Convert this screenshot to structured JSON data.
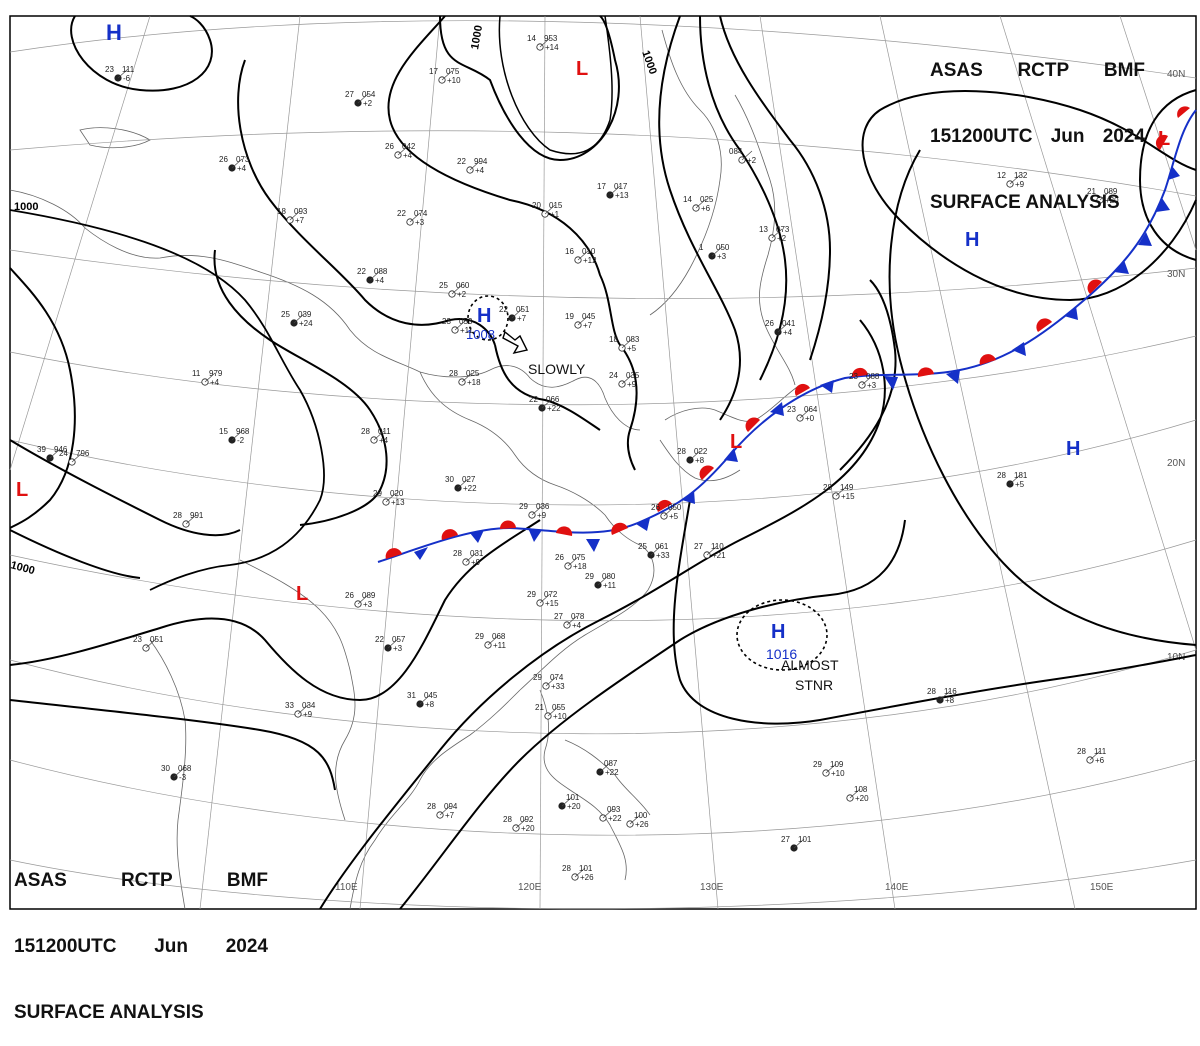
{
  "header": {
    "line1": [
      "ASAS",
      "RCTP",
      "BMF"
    ],
    "line2": [
      "151200UTC",
      "Jun",
      "2024"
    ],
    "line3": "SURFACE ANALYSIS"
  },
  "lon_labels": [
    "110E",
    "120E",
    "130E",
    "140E",
    "150E"
  ],
  "lat_labels": [
    "40N",
    "30N",
    "20N",
    "10N"
  ],
  "isobar_labels": [
    "1000",
    "1000",
    "1000",
    "1000"
  ],
  "pressure_systems": [
    {
      "type": "H",
      "color": "#1530c8",
      "value": ""
    },
    {
      "type": "L",
      "color": "#e01010",
      "value": ""
    },
    {
      "type": "H",
      "color": "#1530c8",
      "value": "1008"
    },
    {
      "type": "H",
      "color": "#1530c8",
      "value": ""
    },
    {
      "type": "L",
      "color": "#e01010",
      "value": ""
    },
    {
      "type": "H",
      "color": "#1530c8",
      "value": ""
    },
    {
      "type": "L",
      "color": "#e01010",
      "value": ""
    },
    {
      "type": "L",
      "color": "#e01010",
      "value": ""
    },
    {
      "type": "L",
      "color": "#e01010",
      "value": ""
    },
    {
      "type": "H",
      "color": "#1530c8",
      "value": "1016"
    }
  ],
  "annotations": {
    "slowly": "SLOWLY",
    "almost_stnr_1": "ALMOST",
    "almost_stnr_2": "STNR"
  },
  "front": {
    "type": "stationary",
    "warm_color": "#e01010",
    "cold_color": "#1530c8"
  },
  "stations": [
    {
      "t": "23",
      "p": "111",
      "d": "-6"
    },
    {
      "t": "14",
      "p": "953",
      "d": "+14"
    },
    {
      "t": "17",
      "p": "075",
      "d": "+10"
    },
    {
      "t": "27",
      "p": "054",
      "d": "+2"
    },
    {
      "t": "26",
      "p": "042",
      "d": "+4"
    },
    {
      "t": "22",
      "p": "994",
      "d": "+4"
    },
    {
      "t": "26",
      "p": "073",
      "d": "+4"
    },
    {
      "t": "18",
      "p": "093",
      "d": "+7"
    },
    {
      "t": "22",
      "p": "074",
      "d": "+3"
    },
    {
      "t": "22",
      "p": "088",
      "d": "+4"
    },
    {
      "t": "25",
      "p": "060",
      "d": "+2"
    },
    {
      "t": "23",
      "p": "053",
      "d": "+11"
    },
    {
      "t": "22",
      "p": "051",
      "d": "+7"
    },
    {
      "t": "19",
      "p": "045",
      "d": "+7"
    },
    {
      "t": "20",
      "p": "015",
      "d": "+1"
    },
    {
      "t": "17",
      "p": "017",
      "d": "+13"
    },
    {
      "t": "16",
      "p": "010",
      "d": "+12"
    },
    {
      "t": "14",
      "p": "025",
      "d": "+6"
    },
    {
      "t": "1",
      "p": "050",
      "d": "+3"
    },
    {
      "t": "084",
      "p": "",
      "d": "+2"
    },
    {
      "t": "13",
      "p": "073",
      "d": "+2"
    },
    {
      "t": "25",
      "p": "039",
      "d": "+24"
    },
    {
      "t": "11",
      "p": "979",
      "d": "+4"
    },
    {
      "t": "24",
      "p": "796",
      "d": ""
    },
    {
      "t": "15",
      "p": "968",
      "d": "-2"
    },
    {
      "t": "28",
      "p": "011",
      "d": "+4"
    },
    {
      "t": "28",
      "p": "025",
      "d": "+18"
    },
    {
      "t": "22",
      "p": "066",
      "d": "+22"
    },
    {
      "t": "18",
      "p": "083",
      "d": "+5"
    },
    {
      "t": "24",
      "p": "035",
      "d": "+9"
    },
    {
      "t": "26",
      "p": "041",
      "d": "+4"
    },
    {
      "t": "23",
      "p": "064",
      "d": "+0"
    },
    {
      "t": "23",
      "p": "088",
      "d": "+3"
    },
    {
      "t": "39",
      "p": "946",
      "d": ""
    },
    {
      "t": "28",
      "p": "991",
      "d": ""
    },
    {
      "t": "29",
      "p": "020",
      "d": "+13"
    },
    {
      "t": "30",
      "p": "027",
      "d": "+22"
    },
    {
      "t": "29",
      "p": "036",
      "d": "+9"
    },
    {
      "t": "26",
      "p": "050",
      "d": "+5"
    },
    {
      "t": "28",
      "p": "022",
      "d": "+8"
    },
    {
      "t": "28",
      "p": "031",
      "d": "+9"
    },
    {
      "t": "26",
      "p": "075",
      "d": "+18"
    },
    {
      "t": "25",
      "p": "061",
      "d": "+33"
    },
    {
      "t": "27",
      "p": "110",
      "d": "+21"
    },
    {
      "t": "28",
      "p": "149",
      "d": "+15"
    },
    {
      "t": "28",
      "p": "181",
      "d": "+5"
    },
    {
      "t": "26",
      "p": "089",
      "d": "+3"
    },
    {
      "t": "29",
      "p": "072",
      "d": "+15"
    },
    {
      "t": "29",
      "p": "080",
      "d": "+11"
    },
    {
      "t": "27",
      "p": "078",
      "d": "+4"
    },
    {
      "t": "23",
      "p": "051",
      "d": ""
    },
    {
      "t": "22",
      "p": "057",
      "d": "+3"
    },
    {
      "t": "29",
      "p": "068",
      "d": "+11"
    },
    {
      "t": "33",
      "p": "034",
      "d": "+9"
    },
    {
      "t": "31",
      "p": "045",
      "d": "+8"
    },
    {
      "t": "29",
      "p": "074",
      "d": "+33"
    },
    {
      "t": "21",
      "p": "055",
      "d": "+10"
    },
    {
      "t": "30",
      "p": "068",
      "d": "-3"
    },
    {
      "t": "28",
      "p": "094",
      "d": "+7"
    },
    {
      "t": "28",
      "p": "092",
      "d": "+20"
    },
    {
      "t": "",
      "p": "101",
      "d": "+20"
    },
    {
      "t": "",
      "p": "093",
      "d": "+22"
    },
    {
      "t": "",
      "p": "100",
      "d": "+26"
    },
    {
      "t": "",
      "p": "087",
      "d": "+22"
    },
    {
      "t": "29",
      "p": "109",
      "d": "+10"
    },
    {
      "t": "",
      "p": "108",
      "d": "+20"
    },
    {
      "t": "27",
      "p": "101",
      "d": ""
    },
    {
      "t": "28",
      "p": "101",
      "d": "+26"
    },
    {
      "t": "28",
      "p": "111",
      "d": "+6"
    },
    {
      "t": "28",
      "p": "116",
      "d": "+8"
    },
    {
      "t": "12",
      "p": "132",
      "d": "+9"
    },
    {
      "t": "21",
      "p": "089",
      "d": "+20"
    }
  ]
}
